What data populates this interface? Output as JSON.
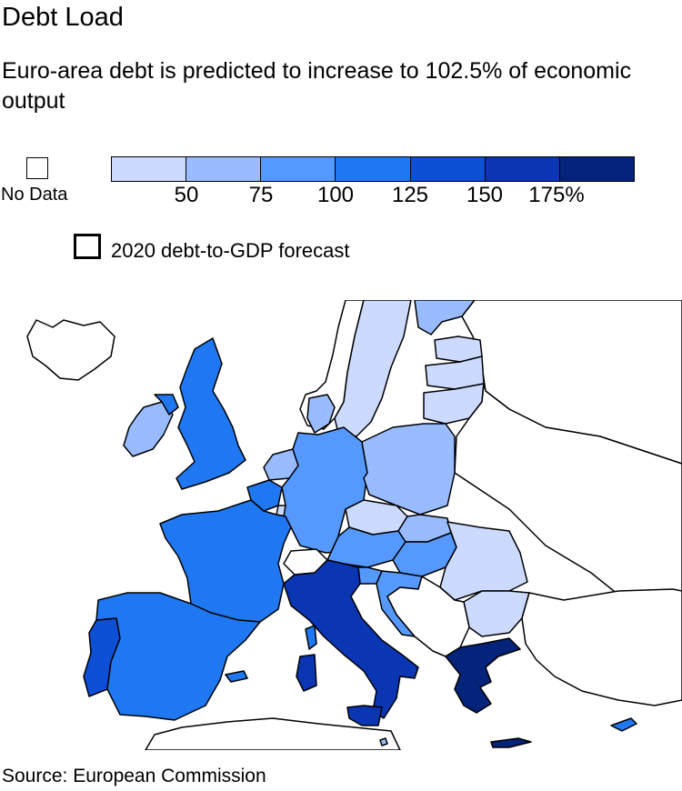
{
  "title": "Debt Load",
  "subtitle": "Euro-area debt is predicted to increase to 102.5% of economic output",
  "legend": {
    "no_data_label": "No Data",
    "bins": [
      {
        "range": "<50",
        "color": "#ccdaff"
      },
      {
        "range": "50-75",
        "color": "#99bbff"
      },
      {
        "range": "75-100",
        "color": "#5599ff"
      },
      {
        "range": "100-125",
        "color": "#1f78f2"
      },
      {
        "range": "125-150",
        "color": "#0d4fd6"
      },
      {
        "range": "150-175",
        "color": "#0a35b3"
      },
      {
        "range": ">175",
        "color": "#04237a"
      }
    ],
    "tick_labels": [
      "50",
      "75",
      "100",
      "125",
      "150",
      "175%"
    ],
    "outline_label": "2020 debt-to-GDP forecast"
  },
  "source": "Source: European Commission",
  "map": {
    "colors": {
      "no_data": "#ffffff",
      "sea": "#ffffff",
      "border": "#000000",
      "lt50": "#ccdaff",
      "b50_75": "#99bbff",
      "b75_100": "#5599ff",
      "b100_125": "#1f78f2",
      "b125_150": "#0d4fd6",
      "b150_175": "#0a35b3",
      "gt175": "#04237a"
    },
    "regions": [
      {
        "name": "iceland",
        "bin": "no_data"
      },
      {
        "name": "ireland",
        "bin": "b50_75"
      },
      {
        "name": "northern-ireland",
        "bin": "b100_125"
      },
      {
        "name": "united-kingdom",
        "bin": "b100_125"
      },
      {
        "name": "portugal",
        "bin": "b125_150"
      },
      {
        "name": "spain",
        "bin": "b100_125"
      },
      {
        "name": "france",
        "bin": "b100_125"
      },
      {
        "name": "belgium",
        "bin": "b100_125"
      },
      {
        "name": "netherlands",
        "bin": "b50_75"
      },
      {
        "name": "luxembourg",
        "bin": "lt50"
      },
      {
        "name": "germany",
        "bin": "b75_100"
      },
      {
        "name": "denmark",
        "bin": "b50_75"
      },
      {
        "name": "switzerland",
        "bin": "no_data"
      },
      {
        "name": "italy",
        "bin": "b150_175"
      },
      {
        "name": "austria",
        "bin": "b75_100"
      },
      {
        "name": "czechia",
        "bin": "lt50"
      },
      {
        "name": "slovakia",
        "bin": "b50_75"
      },
      {
        "name": "hungary",
        "bin": "b75_100"
      },
      {
        "name": "slovenia",
        "bin": "b75_100"
      },
      {
        "name": "croatia",
        "bin": "b75_100"
      },
      {
        "name": "poland",
        "bin": "b50_75"
      },
      {
        "name": "romania",
        "bin": "lt50"
      },
      {
        "name": "bulgaria",
        "bin": "lt50"
      },
      {
        "name": "greece",
        "bin": "gt175"
      },
      {
        "name": "cyprus",
        "bin": "b100_125"
      },
      {
        "name": "norway",
        "bin": "no_data"
      },
      {
        "name": "sweden",
        "bin": "lt50"
      },
      {
        "name": "finland",
        "bin": "b50_75"
      },
      {
        "name": "estonia",
        "bin": "lt50"
      },
      {
        "name": "latvia",
        "bin": "lt50"
      },
      {
        "name": "lithuania",
        "bin": "lt50"
      },
      {
        "name": "balkans",
        "bin": "no_data"
      },
      {
        "name": "belarus-ukraine",
        "bin": "no_data"
      },
      {
        "name": "russia",
        "bin": "no_data"
      },
      {
        "name": "turkey",
        "bin": "no_data"
      },
      {
        "name": "north-africa",
        "bin": "no_data"
      },
      {
        "name": "corsica",
        "bin": "b100_125"
      },
      {
        "name": "sardinia",
        "bin": "b150_175"
      },
      {
        "name": "sicily",
        "bin": "b150_175"
      },
      {
        "name": "balearic-islands",
        "bin": "b100_125"
      },
      {
        "name": "malta",
        "bin": "b50_75"
      },
      {
        "name": "crete",
        "bin": "gt175"
      }
    ]
  }
}
